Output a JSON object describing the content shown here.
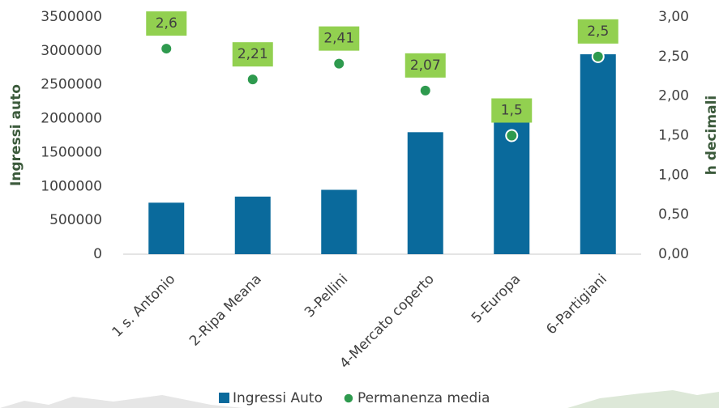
{
  "chart_data": {
    "type": "bar",
    "categories": [
      "1 s. Antonio",
      "2-Ripa Meana",
      "3-Pellini",
      "4-Mercato coperto",
      "5-Europa",
      "6-Partigiani"
    ],
    "series": [
      {
        "name": "Ingressi Auto",
        "color": "#0a6a9c",
        "values": [
          760000,
          850000,
          950000,
          1800000,
          1950000,
          2950000
        ]
      },
      {
        "name": "Permanenza media",
        "color": "#2e9a4e",
        "axis": "y2",
        "type": "scatter",
        "values": [
          2.6,
          2.21,
          2.41,
          2.07,
          1.5,
          2.5
        ],
        "value_labels": [
          "2,6",
          "2,21",
          "2,41",
          "2,07",
          "1,5",
          "2,5"
        ],
        "label_color": "#92d050"
      }
    ],
    "ylabel": "Ingressi auto",
    "y2label": "h decimali",
    "ylim": [
      0,
      3500000
    ],
    "yticks": [
      0,
      500000,
      1000000,
      1500000,
      2000000,
      2500000,
      3000000,
      3500000
    ],
    "y2lim": [
      0,
      3
    ],
    "y2ticks": [
      {
        "value": 0,
        "label": "0,00"
      },
      {
        "value": 0.5,
        "label": "0,50"
      },
      {
        "value": 1,
        "label": "1,00"
      },
      {
        "value": 1.5,
        "label": "1,50"
      },
      {
        "value": 2,
        "label": "2,00"
      },
      {
        "value": 2.5,
        "label": "2,50"
      },
      {
        "value": 3,
        "label": "3,00"
      }
    ],
    "legend": "bottom"
  }
}
